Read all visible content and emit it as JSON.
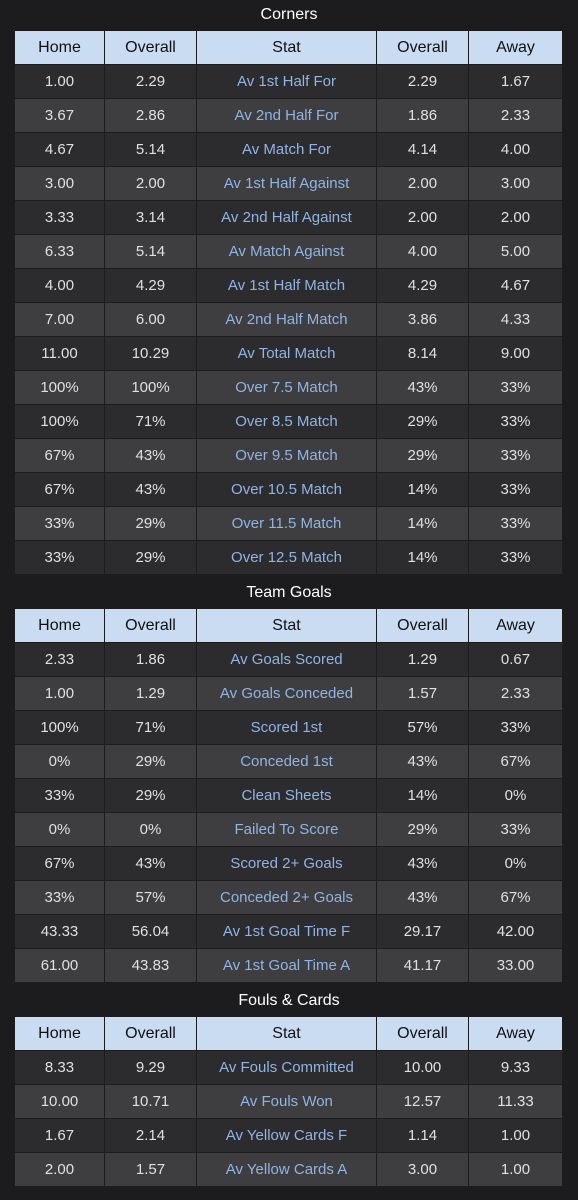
{
  "sections": [
    {
      "title": "Corners",
      "headers": [
        "Home",
        "Overall",
        "Stat",
        "Overall",
        "Away"
      ],
      "rows": [
        [
          "1.00",
          "2.29",
          "Av 1st Half For",
          "2.29",
          "1.67"
        ],
        [
          "3.67",
          "2.86",
          "Av 2nd Half For",
          "1.86",
          "2.33"
        ],
        [
          "4.67",
          "5.14",
          "Av Match For",
          "4.14",
          "4.00"
        ],
        [
          "3.00",
          "2.00",
          "Av 1st Half Against",
          "2.00",
          "3.00"
        ],
        [
          "3.33",
          "3.14",
          "Av 2nd Half Against",
          "2.00",
          "2.00"
        ],
        [
          "6.33",
          "5.14",
          "Av Match Against",
          "4.00",
          "5.00"
        ],
        [
          "4.00",
          "4.29",
          "Av 1st Half Match",
          "4.29",
          "4.67"
        ],
        [
          "7.00",
          "6.00",
          "Av 2nd Half Match",
          "3.86",
          "4.33"
        ],
        [
          "11.00",
          "10.29",
          "Av Total Match",
          "8.14",
          "9.00"
        ],
        [
          "100%",
          "100%",
          "Over 7.5 Match",
          "43%",
          "33%"
        ],
        [
          "100%",
          "71%",
          "Over 8.5 Match",
          "29%",
          "33%"
        ],
        [
          "67%",
          "43%",
          "Over 9.5 Match",
          "29%",
          "33%"
        ],
        [
          "67%",
          "43%",
          "Over 10.5 Match",
          "14%",
          "33%"
        ],
        [
          "33%",
          "29%",
          "Over 11.5 Match",
          "14%",
          "33%"
        ],
        [
          "33%",
          "29%",
          "Over 12.5 Match",
          "14%",
          "33%"
        ]
      ]
    },
    {
      "title": "Team Goals",
      "headers": [
        "Home",
        "Overall",
        "Stat",
        "Overall",
        "Away"
      ],
      "rows": [
        [
          "2.33",
          "1.86",
          "Av Goals Scored",
          "1.29",
          "0.67"
        ],
        [
          "1.00",
          "1.29",
          "Av Goals Conceded",
          "1.57",
          "2.33"
        ],
        [
          "100%",
          "71%",
          "Scored 1st",
          "57%",
          "33%"
        ],
        [
          "0%",
          "29%",
          "Conceded 1st",
          "43%",
          "67%"
        ],
        [
          "33%",
          "29%",
          "Clean Sheets",
          "14%",
          "0%"
        ],
        [
          "0%",
          "0%",
          "Failed To Score",
          "29%",
          "33%"
        ],
        [
          "67%",
          "43%",
          "Scored 2+ Goals",
          "43%",
          "0%"
        ],
        [
          "33%",
          "57%",
          "Conceded 2+ Goals",
          "43%",
          "67%"
        ],
        [
          "43.33",
          "56.04",
          "Av 1st Goal Time F",
          "29.17",
          "42.00"
        ],
        [
          "61.00",
          "43.83",
          "Av 1st Goal Time A",
          "41.17",
          "33.00"
        ]
      ]
    },
    {
      "title": "Fouls & Cards",
      "headers": [
        "Home",
        "Overall",
        "Stat",
        "Overall",
        "Away"
      ],
      "rows": [
        [
          "8.33",
          "9.29",
          "Av Fouls Committed",
          "10.00",
          "9.33"
        ],
        [
          "10.00",
          "10.71",
          "Av Fouls Won",
          "12.57",
          "11.33"
        ],
        [
          "1.67",
          "2.14",
          "Av Yellow Cards F",
          "1.14",
          "1.00"
        ],
        [
          "2.00",
          "1.57",
          "Av Yellow Cards A",
          "3.00",
          "1.00"
        ]
      ]
    }
  ]
}
